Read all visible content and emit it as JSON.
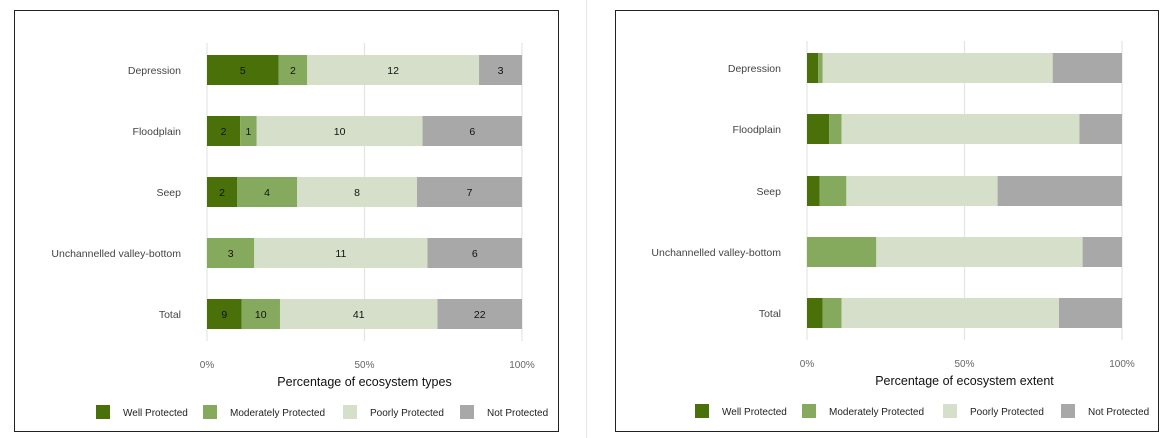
{
  "chart_data": [
    {
      "type": "bar",
      "orientation": "horizontal",
      "stacked": true,
      "normalized": true,
      "categories": [
        "Depression",
        "Floodplain",
        "Seep",
        "Unchannelled valley-bottom",
        "Total"
      ],
      "series": [
        {
          "name": "Well Protected",
          "color": "#4a7009",
          "values": [
            5,
            2,
            2,
            0,
            9
          ]
        },
        {
          "name": "Moderately Protected",
          "color": "#86aa5d",
          "values": [
            2,
            1,
            4,
            3,
            10
          ]
        },
        {
          "name": "Poorly Protected",
          "color": "#d6dfc9",
          "values": [
            12,
            10,
            8,
            11,
            41
          ]
        },
        {
          "name": "Not Protected",
          "color": "#a8a8a8",
          "values": [
            3,
            6,
            7,
            6,
            22
          ]
        }
      ],
      "show_value_labels": true,
      "xlabel": "Percentage of ecosystem types",
      "ylabel": "",
      "xlim": [
        0,
        100
      ],
      "xticks": [
        "0%",
        "50%",
        "100%"
      ],
      "grid": true,
      "legend": "bottom"
    },
    {
      "type": "bar",
      "orientation": "horizontal",
      "stacked": true,
      "normalized": true,
      "categories": [
        "Depression",
        "Floodplain",
        "Seep",
        "Unchannelled valley-bottom",
        "Total"
      ],
      "series": [
        {
          "name": "Well Protected",
          "color": "#4a7009",
          "values": [
            3.5,
            7,
            4,
            0,
            5
          ]
        },
        {
          "name": "Moderately Protected",
          "color": "#86aa5d",
          "values": [
            1.5,
            4,
            8.5,
            22,
            6
          ]
        },
        {
          "name": "Poorly Protected",
          "color": "#d6dfc9",
          "values": [
            73,
            75.5,
            48,
            65.5,
            69
          ]
        },
        {
          "name": "Not Protected",
          "color": "#a8a8a8",
          "values": [
            22,
            13.5,
            39.5,
            12.5,
            20
          ]
        }
      ],
      "show_value_labels": false,
      "xlabel": "Percentage of ecosystem extent",
      "ylabel": "",
      "xlim": [
        0,
        100
      ],
      "xticks": [
        "0%",
        "50%",
        "100%"
      ],
      "grid": true,
      "legend": "bottom"
    }
  ]
}
